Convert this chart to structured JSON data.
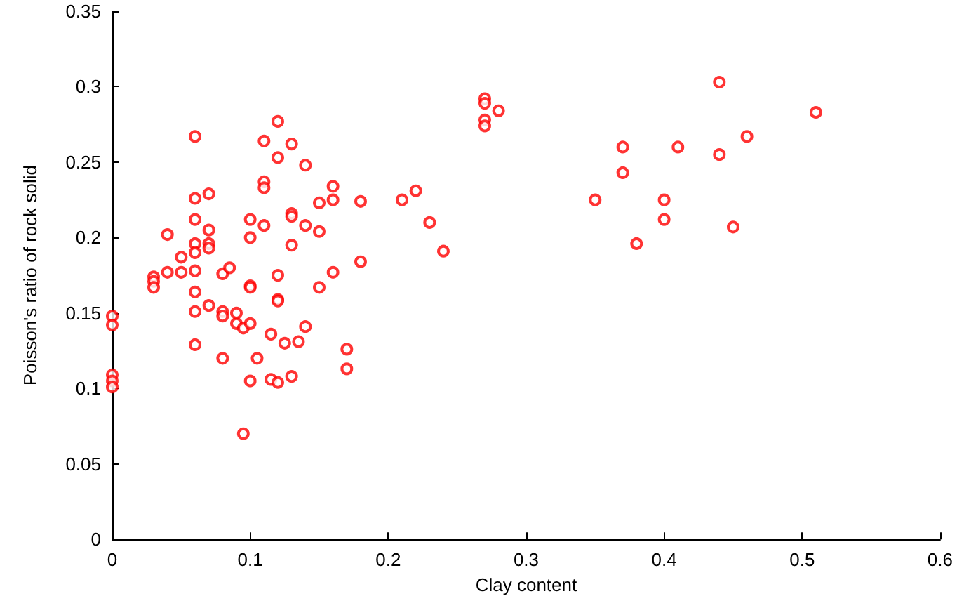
{
  "chart_data": {
    "type": "scatter",
    "xlabel": "Clay content",
    "ylabel": "Poisson's ratio of rock solid",
    "x": [
      0,
      0,
      0,
      0,
      0,
      0.03,
      0.03,
      0.03,
      0.04,
      0.04,
      0.05,
      0.05,
      0.06,
      0.06,
      0.06,
      0.06,
      0.06,
      0.06,
      0.06,
      0.06,
      0.06,
      0.07,
      0.07,
      0.07,
      0.07,
      0.07,
      0.08,
      0.08,
      0.08,
      0.08,
      0.085,
      0.09,
      0.09,
      0.095,
      0.095,
      0.1,
      0.1,
      0.1,
      0.1,
      0.1,
      0.1,
      0.105,
      0.11,
      0.11,
      0.11,
      0.11,
      0.115,
      0.115,
      0.12,
      0.12,
      0.12,
      0.12,
      0.12,
      0.12,
      0.125,
      0.13,
      0.13,
      0.13,
      0.13,
      0.13,
      0.135,
      0.14,
      0.14,
      0.14,
      0.15,
      0.15,
      0.15,
      0.16,
      0.16,
      0.16,
      0.17,
      0.17,
      0.18,
      0.18,
      0.21,
      0.22,
      0.23,
      0.24,
      0.27,
      0.27,
      0.27,
      0.27,
      0.28,
      0.35,
      0.37,
      0.37,
      0.38,
      0.4,
      0.4,
      0.41,
      0.44,
      0.44,
      0.45,
      0.46,
      0.51
    ],
    "series": [
      {
        "color": "#ff0000",
        "values": [
          0.148,
          0.142,
          0.109,
          0.105,
          0.101,
          0.174,
          0.171,
          0.167,
          0.202,
          0.177,
          0.187,
          0.177,
          0.267,
          0.226,
          0.212,
          0.196,
          0.19,
          0.178,
          0.164,
          0.151,
          0.129,
          0.229,
          0.205,
          0.196,
          0.193,
          0.155,
          0.176,
          0.151,
          0.148,
          0.12,
          0.18,
          0.143,
          0.15,
          0.07,
          0.14,
          0.212,
          0.2,
          0.168,
          0.167,
          0.143,
          0.105,
          0.12,
          0.264,
          0.237,
          0.233,
          0.208,
          0.136,
          0.106,
          0.277,
          0.253,
          0.175,
          0.159,
          0.158,
          0.104,
          0.13,
          0.262,
          0.216,
          0.214,
          0.195,
          0.108,
          0.131,
          0.248,
          0.208,
          0.141,
          0.223,
          0.204,
          0.167,
          0.234,
          0.225,
          0.177,
          0.126,
          0.113,
          0.224,
          0.184,
          0.225,
          0.231,
          0.21,
          0.191,
          0.292,
          0.289,
          0.278,
          0.274,
          0.284,
          0.225,
          0.26,
          0.243,
          0.196,
          0.225,
          0.212,
          0.26,
          0.303,
          0.255,
          0.207,
          0.267,
          0.283
        ]
      }
    ],
    "xlim": [
      0,
      0.6
    ],
    "xticks": [
      0,
      0.1,
      0.2,
      0.3,
      0.4,
      0.5,
      0.6
    ],
    "ylim": [
      0,
      0.35
    ],
    "yticks": [
      0,
      0.05,
      0.1,
      0.15,
      0.2,
      0.25,
      0.3,
      0.35
    ],
    "grid": false,
    "marker": "circle"
  }
}
